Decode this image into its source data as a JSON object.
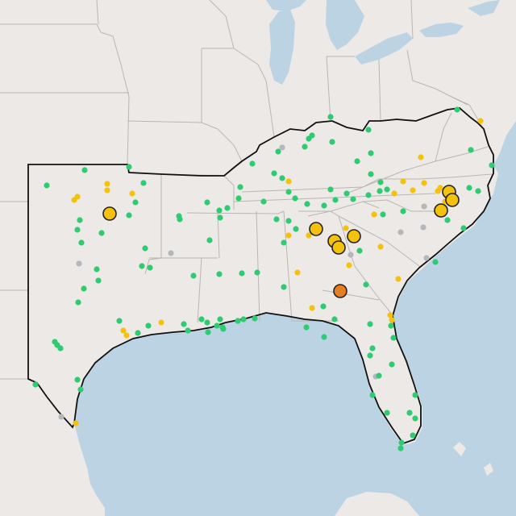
{
  "map": {
    "colors": {
      "land": "#ece9e6",
      "water": "#bcd3e4",
      "state_border": "#b9b6b3",
      "region_outline": "#111111",
      "frame": "#ffffff"
    },
    "legend_status_colors": {
      "green": "#2ecc71",
      "yellow": "#f4c20d",
      "grey": "#b5b8bb",
      "orange": "#e67e22"
    },
    "visible_labels": []
  }
}
